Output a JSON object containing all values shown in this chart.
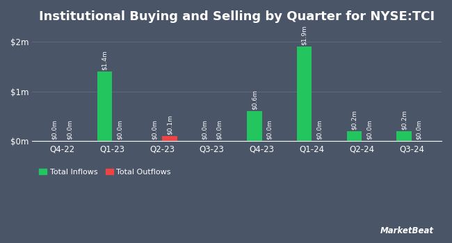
{
  "title": "Institutional Buying and Selling by Quarter for NYSE:TCI",
  "quarters": [
    "Q4-22",
    "Q1-23",
    "Q2-23",
    "Q3-23",
    "Q4-23",
    "Q1-24",
    "Q2-24",
    "Q3-24"
  ],
  "inflows": [
    0.0,
    1.4,
    0.0,
    0.0,
    0.6,
    1.9,
    0.2,
    0.2
  ],
  "outflows": [
    0.0,
    0.0,
    0.1,
    0.0,
    0.0,
    0.0,
    0.0,
    0.0
  ],
  "inflow_label_vals": [
    "$0.0m",
    "$1.4m",
    "$0.0m",
    "$0.0m",
    "$0.6m",
    "$1.9m",
    "$0.2m",
    "$0.2m"
  ],
  "outflow_label_vals": [
    "$0.0m",
    "$0.0m",
    "$0.1m",
    "$0.0m",
    "$0.0m",
    "$0.0m",
    "$0.0m",
    "$0.0m"
  ],
  "bg_color": "#4a5568",
  "bar_width": 0.3,
  "inflow_color": "#22c55e",
  "outflow_color": "#ef4444",
  "text_color": "#ffffff",
  "grid_color": "#5d6b7e",
  "ylim": [
    0,
    2.2
  ],
  "yticks": [
    0,
    1.0,
    2.0
  ],
  "ytick_labels": [
    "$0m",
    "$1m",
    "$2m"
  ],
  "label_fontsize": 6.5,
  "title_fontsize": 13,
  "axis_fontsize": 8.5,
  "legend_labels": [
    "Total Inflows",
    "Total Outflows"
  ]
}
